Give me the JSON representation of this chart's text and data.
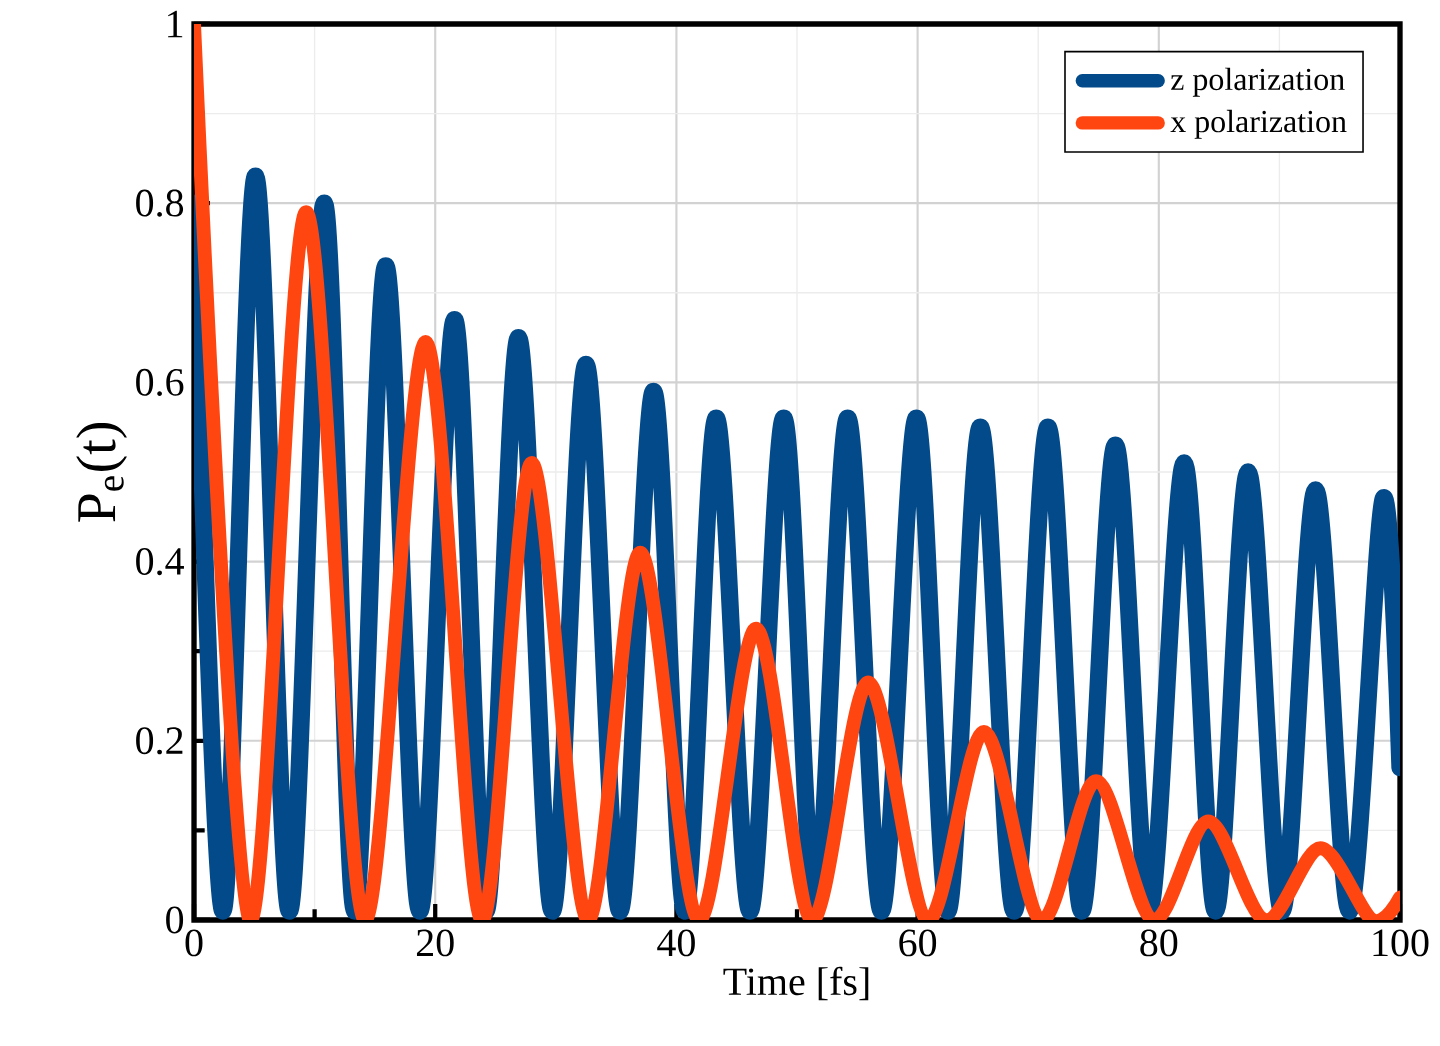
{
  "chart_data": {
    "type": "line",
    "xlabel": "Time [fs]",
    "ylabel": "P$_{e}$(t)",
    "xlim": [
      0,
      100
    ],
    "ylim": [
      0,
      1
    ],
    "xticks": [
      0,
      {
        "value": 10,
        "label": null
      },
      20,
      {
        "value": 30,
        "label": null
      },
      40,
      {
        "value": 50,
        "label": null
      },
      60,
      {
        "value": 70,
        "label": null
      },
      80,
      {
        "value": 90,
        "label": null
      },
      100
    ],
    "yticks": [
      0,
      {
        "value": 0.1,
        "label": null
      },
      0.2,
      {
        "value": 0.3,
        "label": null
      },
      0.4,
      {
        "value": 0.5,
        "label": null
      },
      0.6,
      {
        "value": 0.7,
        "label": null
      },
      0.8,
      {
        "value": 0.9,
        "label": null
      },
      1
    ],
    "grid": true,
    "legend": "top right",
    "marker": "none",
    "line_style": "solid",
    "series": [
      {
        "name": "z polarization",
        "color": "#034a8a",
        "x": [
          0,
          2.4,
          5.1,
          7.9,
          10.8,
          13.3,
          15.9,
          18.7,
          21.6,
          24.2,
          26.9,
          29.7,
          32.5,
          35.3,
          38.1,
          40.7,
          43.3,
          46.1,
          48.9,
          51.5,
          54.2,
          57.0,
          59.9,
          62.5,
          65.2,
          68.0,
          70.8,
          73.6,
          76.4,
          79.2,
          82.1,
          84.7,
          87.4,
          90.2,
          93.0,
          95.8,
          98.6,
          100
        ],
        "values": [
          0.8,
          0.01,
          0.83,
          0.01,
          0.8,
          0.01,
          0.73,
          0.01,
          0.67,
          0.01,
          0.65,
          0.01,
          0.62,
          0.01,
          0.59,
          0.01,
          0.56,
          0.01,
          0.56,
          0.01,
          0.56,
          0.01,
          0.56,
          0.01,
          0.55,
          0.01,
          0.55,
          0.01,
          0.53,
          0.01,
          0.51,
          0.01,
          0.5,
          0.01,
          0.48,
          0.01,
          0.47,
          0.17
        ]
      },
      {
        "name": "x polarization",
        "color": "#ff4611",
        "x": [
          0,
          4.6,
          9.3,
          14.1,
          19.2,
          23.8,
          28.0,
          32.6,
          37.0,
          41.8,
          46.6,
          51.2,
          55.9,
          60.8,
          65.5,
          70.2,
          74.8,
          79.5,
          84.1,
          88.8,
          93.4,
          97.7,
          100
        ],
        "values": [
          1.0,
          0,
          0.79,
          0,
          0.645,
          0,
          0.51,
          0,
          0.41,
          0,
          0.325,
          0,
          0.265,
          0,
          0.21,
          0,
          0.155,
          0,
          0.11,
          0,
          0.08,
          0,
          0.025
        ]
      }
    ]
  }
}
